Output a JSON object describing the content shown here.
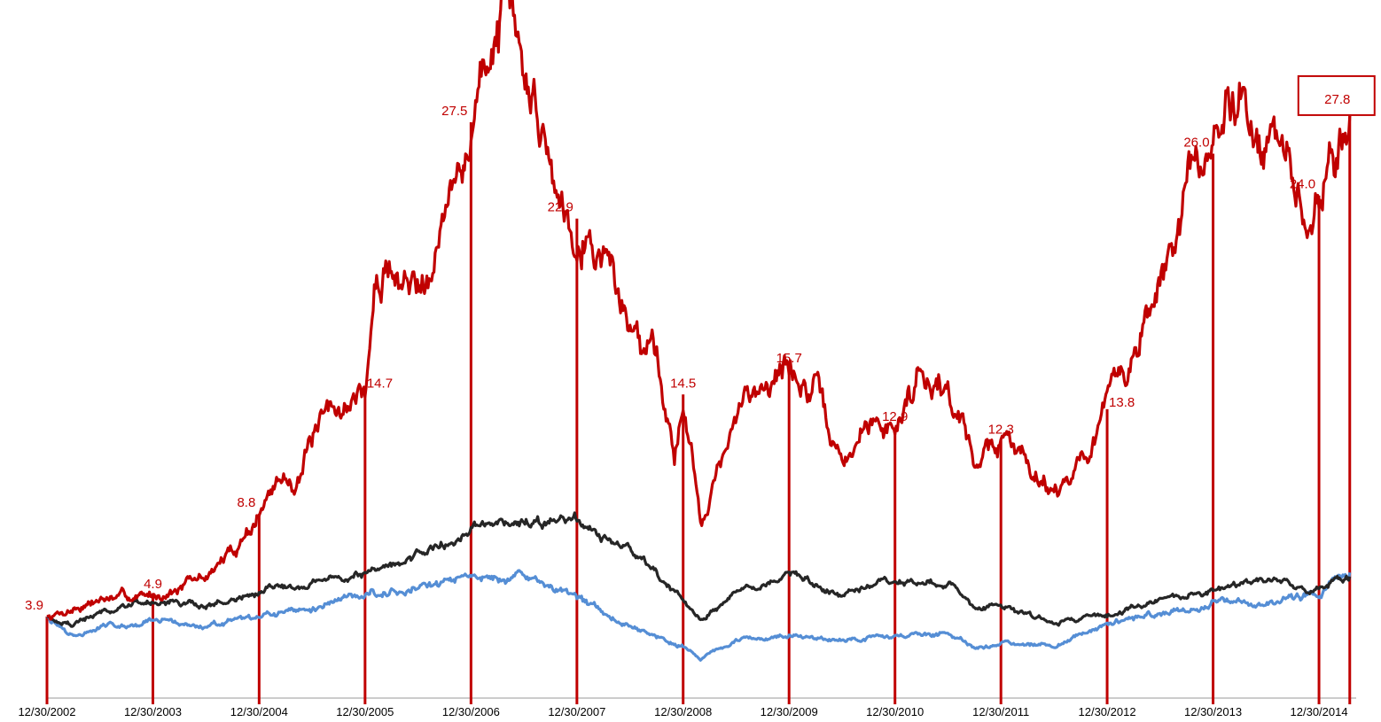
{
  "chart_data": {
    "type": "line",
    "title": "",
    "xlabel": "",
    "ylabel": "",
    "x_range": [
      "2002-12-30",
      "2015-05-01"
    ],
    "y_range": [
      0,
      33
    ],
    "grid": false,
    "legend": "none",
    "colors": {
      "red": "#c00000",
      "black": "#262626",
      "blue": "#558ed5",
      "axis": "#999999"
    },
    "x_ticks": [
      "12/30/2002",
      "12/30/2003",
      "12/30/2004",
      "12/30/2005",
      "12/30/2006",
      "12/30/2007",
      "12/30/2008",
      "12/30/2009",
      "12/30/2010",
      "12/30/2011",
      "12/30/2012",
      "12/30/2013",
      "12/30/2014"
    ],
    "series": [
      {
        "key": "red",
        "color": "#c00000",
        "points": [
          [
            "2002-12-30",
            3.9
          ],
          [
            "2003-03-31",
            4.3
          ],
          [
            "2003-06-30",
            4.7
          ],
          [
            "2003-09-30",
            4.8
          ],
          [
            "2003-12-30",
            4.9
          ],
          [
            "2004-03-31",
            5.3
          ],
          [
            "2004-06-30",
            5.8
          ],
          [
            "2004-09-30",
            7.0
          ],
          [
            "2004-12-30",
            8.8
          ],
          [
            "2005-02-28",
            10.2
          ],
          [
            "2005-04-30",
            10.5
          ],
          [
            "2005-06-30",
            12.2
          ],
          [
            "2005-09-30",
            13.8
          ],
          [
            "2005-12-30",
            14.7
          ],
          [
            "2006-01-31",
            19.0
          ],
          [
            "2006-03-31",
            20.8
          ],
          [
            "2006-05-31",
            19.5
          ],
          [
            "2006-07-31",
            21.0
          ],
          [
            "2006-09-30",
            23.8
          ],
          [
            "2006-11-30",
            24.5
          ],
          [
            "2006-12-30",
            27.5
          ],
          [
            "2007-03-15",
            31.5
          ],
          [
            "2007-04-15",
            33.0
          ],
          [
            "2007-06-30",
            29.5
          ],
          [
            "2007-08-31",
            27.5
          ],
          [
            "2007-10-31",
            24.0
          ],
          [
            "2007-12-30",
            22.9
          ],
          [
            "2008-02-28",
            22.0
          ],
          [
            "2008-04-30",
            20.5
          ],
          [
            "2008-06-30",
            17.5
          ],
          [
            "2008-09-30",
            17.0
          ],
          [
            "2008-11-30",
            11.5
          ],
          [
            "2008-12-30",
            14.5
          ],
          [
            "2009-02-28",
            8.5
          ],
          [
            "2009-04-30",
            11.0
          ],
          [
            "2009-07-31",
            14.0
          ],
          [
            "2009-09-30",
            15.4
          ],
          [
            "2009-12-30",
            15.7
          ],
          [
            "2010-03-31",
            14.5
          ],
          [
            "2010-06-30",
            11.0
          ],
          [
            "2010-09-30",
            13.0
          ],
          [
            "2010-12-30",
            12.9
          ],
          [
            "2011-03-31",
            16.0
          ],
          [
            "2011-06-30",
            14.8
          ],
          [
            "2011-09-30",
            11.5
          ],
          [
            "2011-12-30",
            12.3
          ],
          [
            "2012-03-31",
            11.5
          ],
          [
            "2012-06-30",
            10.0
          ],
          [
            "2012-09-30",
            11.3
          ],
          [
            "2012-12-30",
            13.8
          ],
          [
            "2013-03-31",
            16.5
          ],
          [
            "2013-06-30",
            19.5
          ],
          [
            "2013-09-30",
            24.0
          ],
          [
            "2013-12-30",
            26.0
          ],
          [
            "2014-03-31",
            29.5
          ],
          [
            "2014-06-30",
            26.5
          ],
          [
            "2014-09-30",
            25.0
          ],
          [
            "2014-11-15",
            21.5
          ],
          [
            "2014-12-30",
            24.0
          ],
          [
            "2015-02-28",
            26.0
          ],
          [
            "2015-04-15",
            27.8
          ]
        ]
      },
      {
        "key": "black",
        "color": "#262626",
        "points": [
          [
            "2002-12-30",
            3.9
          ],
          [
            "2003-03-31",
            3.5
          ],
          [
            "2003-06-30",
            4.1
          ],
          [
            "2003-12-30",
            4.6
          ],
          [
            "2004-06-30",
            4.4
          ],
          [
            "2004-12-30",
            5.0
          ],
          [
            "2005-06-30",
            5.6
          ],
          [
            "2005-12-30",
            6.0
          ],
          [
            "2006-06-30",
            6.8
          ],
          [
            "2006-12-30",
            8.0
          ],
          [
            "2007-06-30",
            8.5
          ],
          [
            "2007-12-30",
            8.3
          ],
          [
            "2008-06-30",
            7.0
          ],
          [
            "2008-12-30",
            4.6
          ],
          [
            "2009-02-28",
            3.7
          ],
          [
            "2009-06-30",
            5.0
          ],
          [
            "2009-12-30",
            6.0
          ],
          [
            "2010-06-30",
            4.8
          ],
          [
            "2010-12-30",
            5.6
          ],
          [
            "2011-06-30",
            5.5
          ],
          [
            "2011-09-30",
            4.4
          ],
          [
            "2011-12-30",
            4.5
          ],
          [
            "2012-06-30",
            3.6
          ],
          [
            "2012-12-30",
            4.0
          ],
          [
            "2013-06-30",
            4.7
          ],
          [
            "2013-12-30",
            5.1
          ],
          [
            "2014-06-30",
            5.6
          ],
          [
            "2014-12-30",
            5.2
          ],
          [
            "2015-04-15",
            5.8
          ]
        ]
      },
      {
        "key": "blue",
        "color": "#558ed5",
        "points": [
          [
            "2002-12-30",
            3.9
          ],
          [
            "2003-03-31",
            2.9
          ],
          [
            "2003-06-30",
            3.4
          ],
          [
            "2003-12-30",
            3.7
          ],
          [
            "2004-06-30",
            3.4
          ],
          [
            "2004-12-30",
            3.8
          ],
          [
            "2005-06-30",
            4.3
          ],
          [
            "2005-12-30",
            5.0
          ],
          [
            "2006-06-30",
            5.3
          ],
          [
            "2006-12-30",
            5.7
          ],
          [
            "2007-06-30",
            5.8
          ],
          [
            "2007-12-30",
            4.8
          ],
          [
            "2008-06-30",
            3.5
          ],
          [
            "2008-12-30",
            2.5
          ],
          [
            "2009-02-28",
            1.9
          ],
          [
            "2009-06-30",
            2.7
          ],
          [
            "2009-12-30",
            3.0
          ],
          [
            "2010-06-30",
            2.8
          ],
          [
            "2010-12-30",
            3.0
          ],
          [
            "2011-06-30",
            3.1
          ],
          [
            "2011-09-30",
            2.4
          ],
          [
            "2011-12-30",
            2.6
          ],
          [
            "2012-06-30",
            2.6
          ],
          [
            "2012-12-30",
            3.5
          ],
          [
            "2013-06-30",
            4.0
          ],
          [
            "2013-12-30",
            4.5
          ],
          [
            "2014-06-30",
            4.6
          ],
          [
            "2014-12-30",
            5.0
          ],
          [
            "2015-04-15",
            6.0
          ]
        ]
      }
    ],
    "annotations": [
      {
        "date": "2002-12-30",
        "value": 3.9,
        "text": "3.9",
        "pos": "left"
      },
      {
        "date": "2003-12-30",
        "value": 4.9,
        "text": "4.9",
        "pos": "center"
      },
      {
        "date": "2004-12-30",
        "value": 8.8,
        "text": "8.8",
        "pos": "left"
      },
      {
        "date": "2005-12-30",
        "value": 14.7,
        "text": "14.7",
        "pos": "right"
      },
      {
        "date": "2006-12-30",
        "value": 27.5,
        "text": "27.5",
        "pos": "left"
      },
      {
        "date": "2007-12-30",
        "value": 22.9,
        "text": "22.9",
        "pos": "left"
      },
      {
        "date": "2008-12-30",
        "value": 14.5,
        "text": "14.5",
        "pos": "center"
      },
      {
        "date": "2009-12-30",
        "value": 15.7,
        "text": "15.7",
        "pos": "center"
      },
      {
        "date": "2010-12-30",
        "value": 12.9,
        "text": "12.9",
        "pos": "center"
      },
      {
        "date": "2011-12-30",
        "value": 12.3,
        "text": "12.3",
        "pos": "center"
      },
      {
        "date": "2012-12-30",
        "value": 13.8,
        "text": "13.8",
        "pos": "right"
      },
      {
        "date": "2013-12-30",
        "value": 26.0,
        "text": "26.0",
        "pos": "left"
      },
      {
        "date": "2014-12-30",
        "value": 24.0,
        "text": "24.0",
        "pos": "left"
      },
      {
        "date": "2015-04-15",
        "value": 27.8,
        "text": "27.8",
        "pos": "boxed"
      }
    ]
  }
}
